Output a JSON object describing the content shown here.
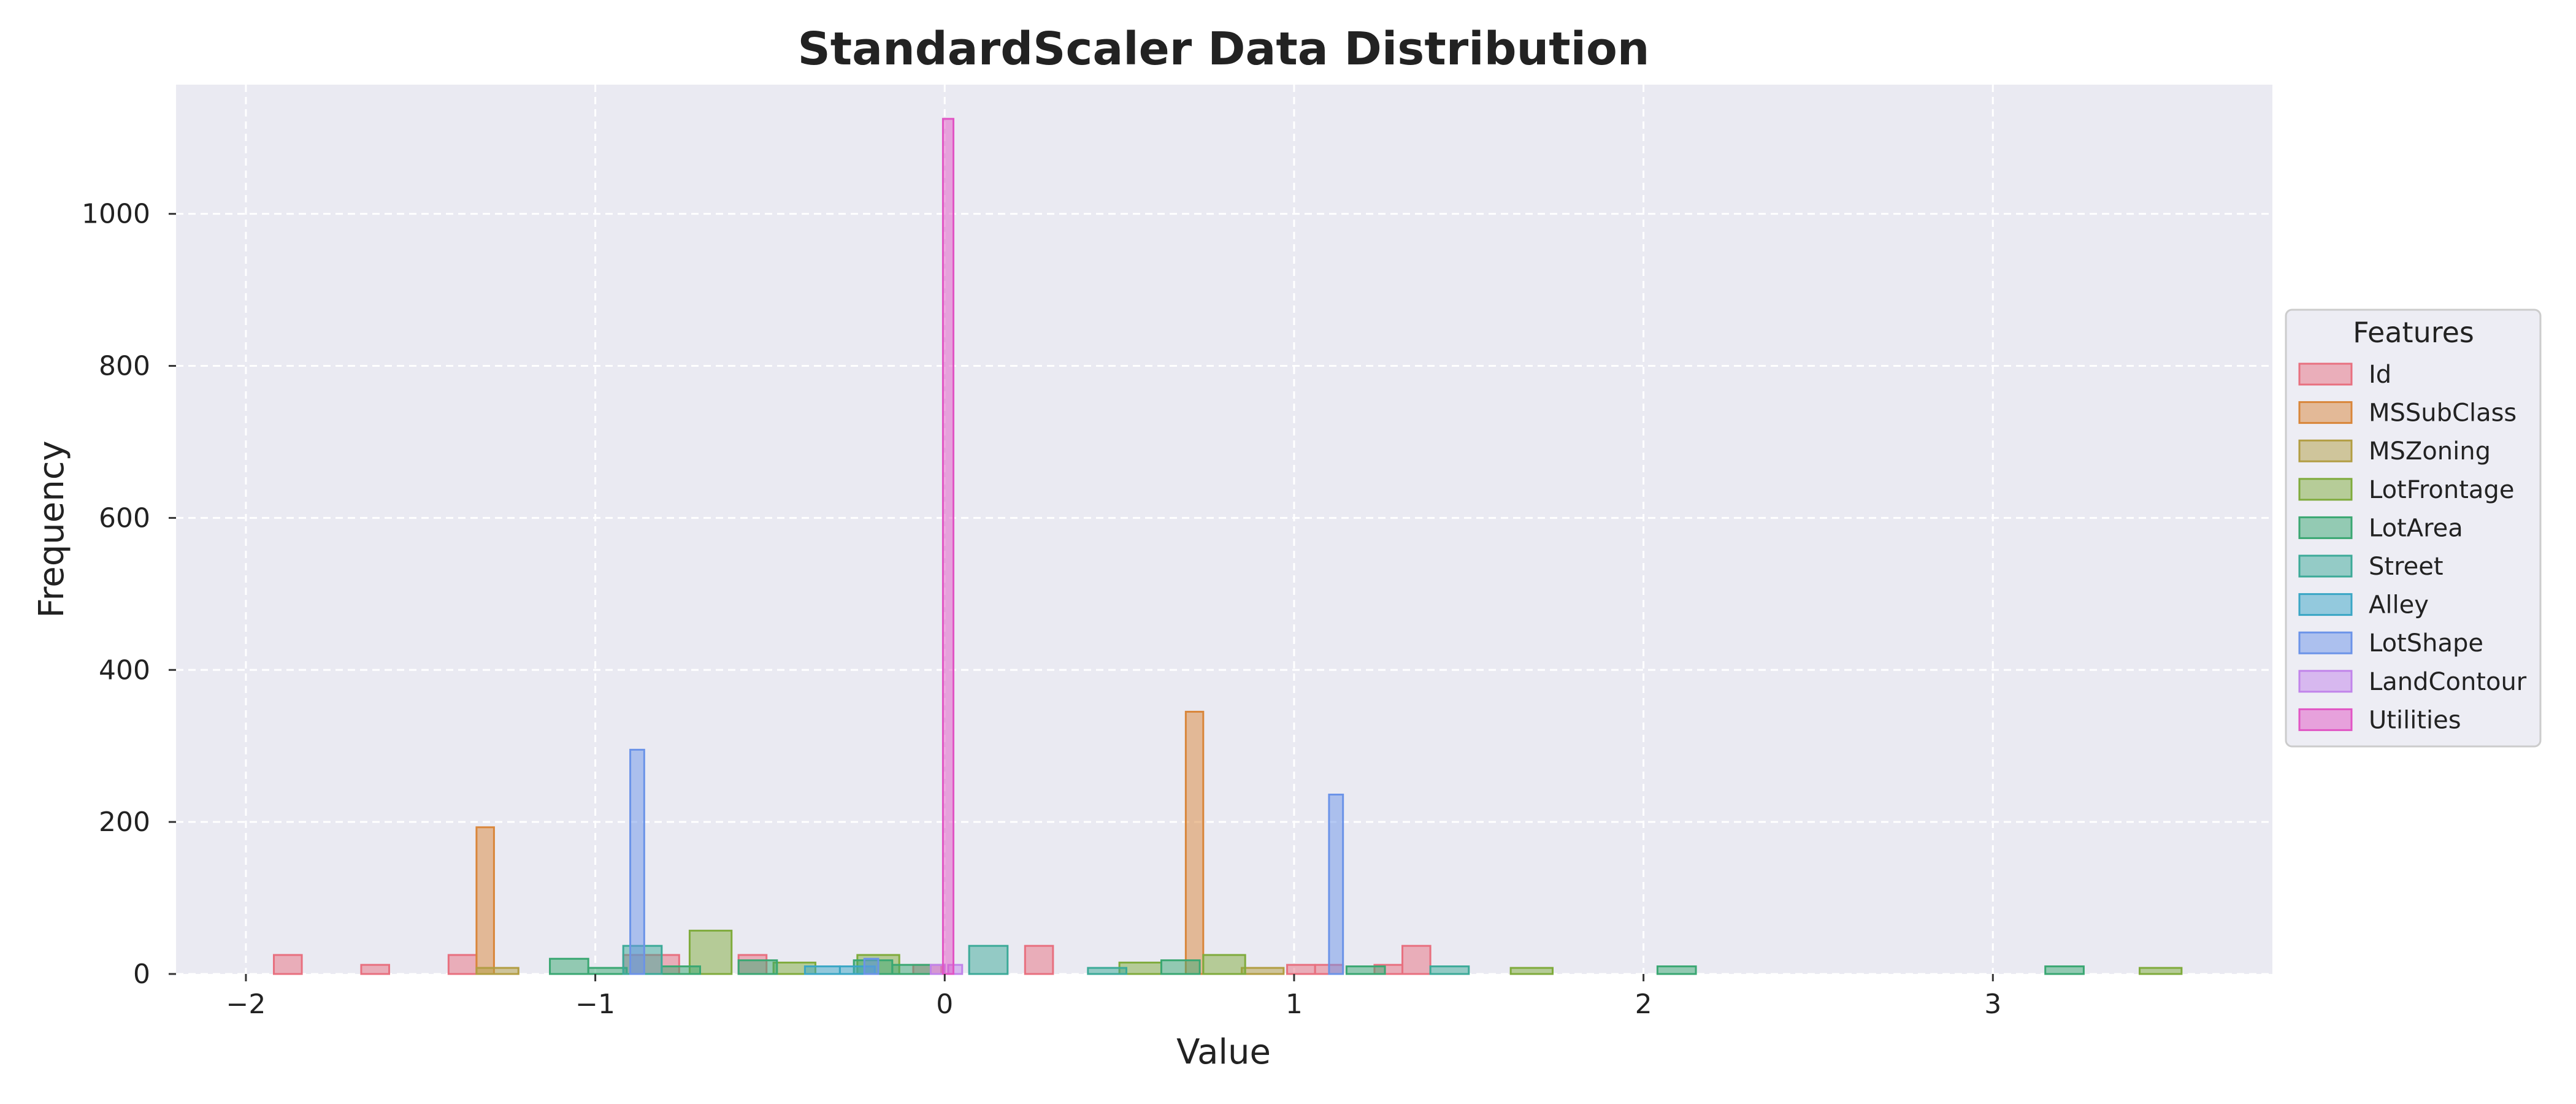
{
  "chart_data": {
    "type": "histogram",
    "title": "StandardScaler Data Distribution",
    "xlabel": "Value",
    "ylabel": "Frequency",
    "xlim": [
      -2.2,
      3.8
    ],
    "ylim": [
      0,
      1170
    ],
    "xticks": [
      -2,
      -1,
      0,
      1,
      2,
      3
    ],
    "xtick_labels": [
      "−2",
      "−1",
      "0",
      "1",
      "2",
      "3"
    ],
    "yticks": [
      0,
      200,
      400,
      600,
      800,
      1000
    ],
    "ytick_labels": [
      "0",
      "200",
      "400",
      "600",
      "800",
      "1000"
    ],
    "grid": true,
    "legend": {
      "title": "Features",
      "location": "center-right (outside)"
    },
    "series": [
      {
        "name": "Id",
        "color": "#e8707f",
        "bins": [
          [
            -1.92,
            -1.84,
            25
          ],
          [
            -1.67,
            -1.59,
            12
          ],
          [
            -1.42,
            -1.34,
            25
          ],
          [
            -0.92,
            -0.76,
            25
          ],
          [
            -0.59,
            -0.51,
            25
          ],
          [
            -0.09,
            -0.01,
            12
          ],
          [
            0.23,
            0.31,
            37
          ],
          [
            0.98,
            1.06,
            12
          ],
          [
            1.06,
            1.14,
            12
          ],
          [
            1.23,
            1.31,
            12
          ],
          [
            1.31,
            1.39,
            37
          ]
        ]
      },
      {
        "name": "MSSubClass",
        "color": "#d9863a",
        "bins": [
          [
            -1.34,
            -1.29,
            193
          ],
          [
            0.69,
            0.74,
            345
          ]
        ]
      },
      {
        "name": "MSZoning",
        "color": "#b29d42",
        "bins": [
          [
            -1.34,
            -1.22,
            8
          ],
          [
            0.85,
            0.97,
            8
          ]
        ]
      },
      {
        "name": "LotFrontage",
        "color": "#7fab3c",
        "bins": [
          [
            -0.73,
            -0.61,
            57
          ],
          [
            -0.49,
            -0.37,
            15
          ],
          [
            -0.25,
            -0.13,
            25
          ],
          [
            0.5,
            0.62,
            15
          ],
          [
            0.74,
            0.86,
            25
          ],
          [
            1.62,
            1.74,
            8
          ],
          [
            3.42,
            3.54,
            8
          ]
        ]
      },
      {
        "name": "LotArea",
        "color": "#3aa772",
        "bins": [
          [
            -1.13,
            -1.02,
            20
          ],
          [
            -1.02,
            -0.91,
            8
          ],
          [
            -0.81,
            -0.7,
            10
          ],
          [
            -0.59,
            -0.48,
            18
          ],
          [
            -0.26,
            -0.15,
            18
          ],
          [
            -0.15,
            -0.04,
            12
          ],
          [
            0.62,
            0.73,
            18
          ],
          [
            1.15,
            1.26,
            10
          ],
          [
            2.04,
            2.15,
            10
          ],
          [
            3.15,
            3.26,
            10
          ]
        ]
      },
      {
        "name": "Street",
        "color": "#3caa98",
        "bins": [
          [
            -0.92,
            -0.81,
            37
          ],
          [
            0.07,
            0.18,
            37
          ],
          [
            0.41,
            0.52,
            8
          ],
          [
            1.39,
            1.5,
            10
          ]
        ]
      },
      {
        "name": "Alley",
        "color": "#3aa6c5",
        "bins": [
          [
            -0.4,
            -0.3,
            10
          ],
          [
            -0.3,
            -0.2,
            10
          ]
        ]
      },
      {
        "name": "LotShape",
        "color": "#6b93e8",
        "bins": [
          [
            -0.9,
            -0.86,
            295
          ],
          [
            1.1,
            1.14,
            236
          ],
          [
            -0.23,
            -0.19,
            20
          ]
        ]
      },
      {
        "name": "LandContour",
        "color": "#c184ea",
        "bins": [
          [
            -0.04,
            0.0,
            12
          ],
          [
            0.01,
            0.05,
            12
          ]
        ]
      },
      {
        "name": "Utilities",
        "color": "#e155c4",
        "bins": [
          [
            -0.005,
            0.025,
            1125
          ]
        ]
      }
    ]
  }
}
